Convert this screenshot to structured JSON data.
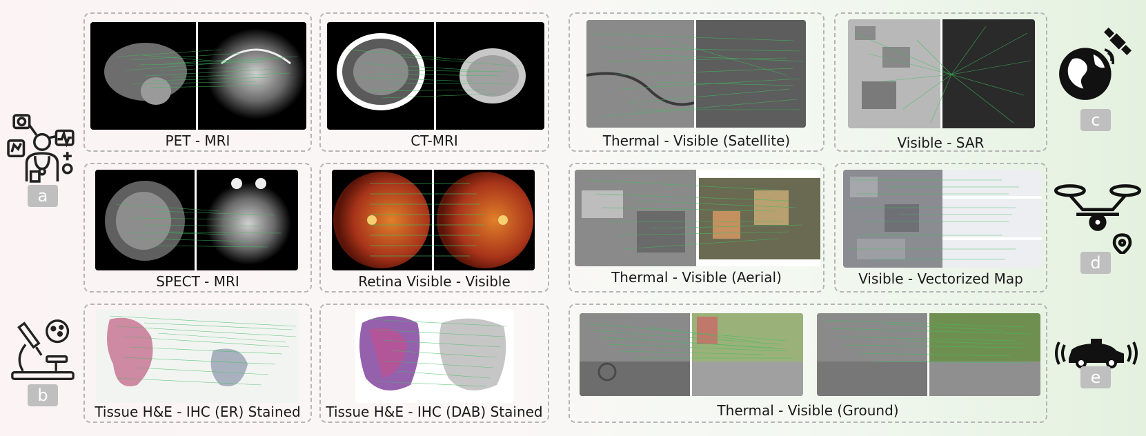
{
  "colors": {
    "match_line": "#3fbf5f",
    "badge_bg": "#bfbfbf",
    "panel_border": "#b5b5b5"
  },
  "categories": [
    {
      "letter": "a",
      "icon": "medical-doctor-icon"
    },
    {
      "letter": "b",
      "icon": "microscope-icon"
    },
    {
      "letter": "c",
      "icon": "globe-satellite-icon"
    },
    {
      "letter": "d",
      "icon": "drone-location-icon"
    },
    {
      "letter": "e",
      "icon": "car-sensor-icon"
    }
  ],
  "panels": {
    "pet_mri": "PET - MRI",
    "ct_mri": "CT-MRI",
    "spect_mri": "SPECT - MRI",
    "retina": "Retina Visible - Visible",
    "tissue_er": "Tissue H&E - IHC (ER) Stained",
    "tissue_dab": "Tissue H&E - IHC (DAB) Stained",
    "thermal_satellite": "Thermal - Visible (Satellite)",
    "visible_sar": "Visible - SAR",
    "thermal_aerial": "Thermal - Visible (Aerial)",
    "visible_map": "Visible - Vectorized Map",
    "thermal_ground": "Thermal - Visible (Ground)"
  }
}
